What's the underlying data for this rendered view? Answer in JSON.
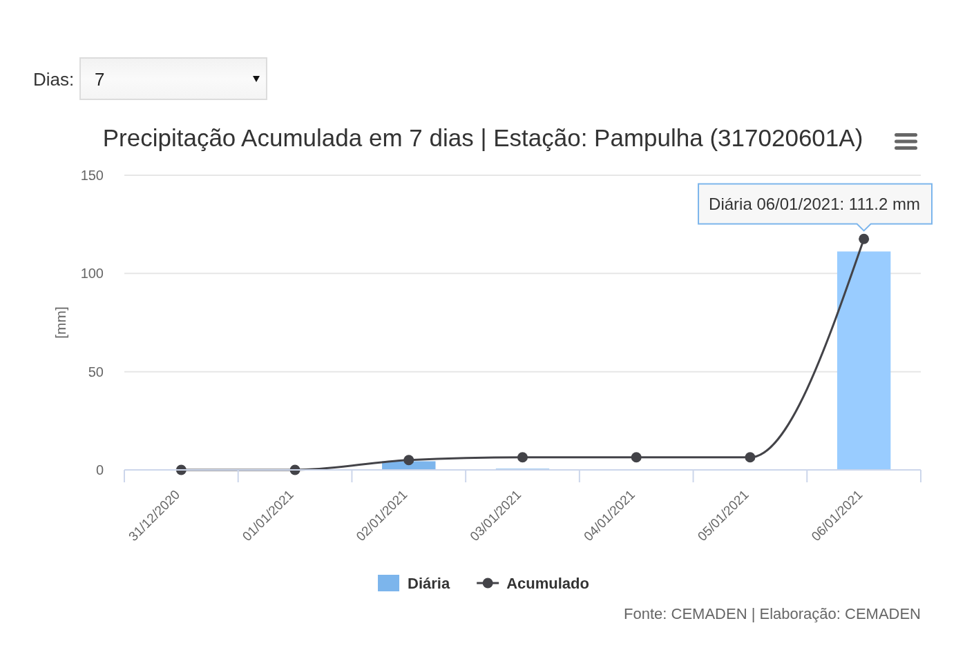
{
  "chart_data": {
    "type": "bar",
    "title": "Precipitação Acumulada em 7 dias | Estação: Pampulha (317020601A)",
    "ylabel": "[mm]",
    "categories": [
      "31/12/2020",
      "01/01/2021",
      "02/01/2021",
      "03/01/2021",
      "04/01/2021",
      "05/01/2021",
      "06/01/2021"
    ],
    "series": [
      {
        "name": "Diária",
        "type": "bar",
        "color": "#7cb5ec",
        "colors": [
          "#7cb5ec",
          "#7cb5ec",
          "#7cb5ec",
          "#7cb5ec",
          "#7cb5ec",
          "#7cb5ec",
          "#99ccff"
        ],
        "values": [
          0,
          0,
          4.4,
          0.6,
          0,
          0,
          111.2
        ]
      },
      {
        "name": "Acumulado",
        "type": "line",
        "color": "#434348",
        "values": [
          0,
          0,
          5,
          6.4,
          6.4,
          6.4,
          117.6
        ]
      }
    ],
    "ylim": [
      0,
      150
    ],
    "yticks": [
      0,
      50,
      100,
      150
    ],
    "grid": "y",
    "legend": "bottom",
    "marker": "circle",
    "line_style": "solid",
    "annotations": [
      "Dias:",
      "7",
      {
        "text": "Diária 06/01/2021: 111.2 mm",
        "x": "06/01/2021",
        "y": 111.2
      },
      "Fonte: CEMADEN | Elaboração: CEMADEN"
    ]
  }
}
